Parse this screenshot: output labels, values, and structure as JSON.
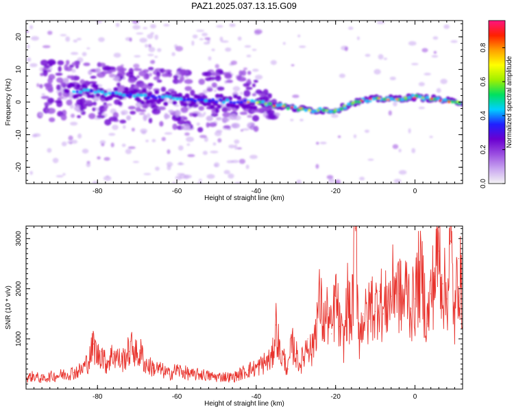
{
  "title": "PAZ1.2025.037.13.15.G09",
  "colors": {
    "snr_line": "#e8322c",
    "colorbar": [
      "#f4f4f4",
      "#c9a6f0",
      "#9a4de0",
      "#6a00d0",
      "#2020ff",
      "#00d0ff",
      "#00e060",
      "#a0f000",
      "#ffff00",
      "#ffa000",
      "#ff2000",
      "#ff1480"
    ]
  },
  "chart_data": [
    {
      "type": "heatmap",
      "name": "spectrogram",
      "xlabel": "Height of straight line (km)",
      "ylabel": "Frequency (Hz)",
      "xlim": [
        -98,
        12
      ],
      "ylim": [
        -25,
        25
      ],
      "xticks": [
        -80,
        -60,
        -40,
        -20,
        0
      ],
      "yticks": [
        -20,
        -10,
        0,
        10,
        20
      ],
      "ridge_frequency_hz": {
        "x": [
          -85,
          -80,
          -75,
          -70,
          -65,
          -60,
          -55,
          -50,
          -45,
          -40,
          -35,
          -30,
          -25,
          -20,
          -15,
          -10,
          -5,
          0,
          5,
          10
        ],
        "y": [
          3.5,
          3,
          2.5,
          2,
          1.5,
          1,
          0.5,
          0.5,
          0,
          0,
          -1,
          -2,
          -2.5,
          -2.5,
          0,
          1,
          1,
          1.5,
          1,
          0
        ]
      },
      "colorbar": {
        "label": "Normalized spectral amplitude",
        "range": [
          0,
          0.96
        ],
        "ticks": [
          "0.0",
          "0.2",
          "0.4",
          "0.6",
          "0.8"
        ]
      }
    },
    {
      "type": "line",
      "name": "snr",
      "xlabel": "Height of straight line (km)",
      "ylabel": "SNR (10 * v/v)",
      "xlim": [
        -98,
        12
      ],
      "ylim": [
        0,
        3250
      ],
      "xticks": [
        -80,
        -60,
        -40,
        -20,
        0
      ],
      "yticks": [
        1000,
        2000,
        3000
      ],
      "series": [
        {
          "x": [
            -98,
            -96,
            -94,
            -92,
            -90,
            -88,
            -86,
            -84,
            -82,
            -81,
            -80,
            -79,
            -78,
            -76,
            -74,
            -72,
            -71,
            -70,
            -69,
            -68,
            -66,
            -64,
            -62,
            -60,
            -58,
            -56,
            -54,
            -52,
            -50,
            -48,
            -46,
            -44,
            -42,
            -40,
            -38,
            -36,
            -35,
            -34,
            -33,
            -32,
            -31,
            -30,
            -29,
            -28,
            -27,
            -26,
            -25,
            -24,
            -23,
            -22,
            -21,
            -20,
            -19,
            -18,
            -17,
            -16,
            -15,
            -14,
            -13,
            -12,
            -11,
            -10,
            -9,
            -8,
            -7,
            -6,
            -5,
            -4,
            -3,
            -2,
            -1,
            0,
            1,
            2,
            3,
            4,
            5,
            6,
            7,
            8,
            9,
            10,
            11,
            12
          ],
          "y": [
            220,
            260,
            200,
            250,
            270,
            300,
            330,
            380,
            600,
            900,
            650,
            750,
            500,
            700,
            550,
            750,
            850,
            650,
            720,
            500,
            420,
            380,
            300,
            380,
            330,
            280,
            300,
            260,
            240,
            250,
            230,
            300,
            380,
            420,
            520,
            600,
            1280,
            700,
            600,
            400,
            900,
            700,
            500,
            650,
            1000,
            700,
            1300,
            1750,
            1300,
            1500,
            1100,
            1850,
            1250,
            900,
            1800,
            1250,
            3200,
            1000,
            1500,
            1350,
            1750,
            1550,
            1950,
            1500,
            1750,
            1850,
            2200,
            1900,
            1700,
            2050,
            1600,
            1800,
            2250,
            2100,
            1300,
            1900,
            2250,
            2750,
            2100,
            1800,
            2950,
            1300,
            2600,
            1550
          ]
        }
      ]
    }
  ]
}
